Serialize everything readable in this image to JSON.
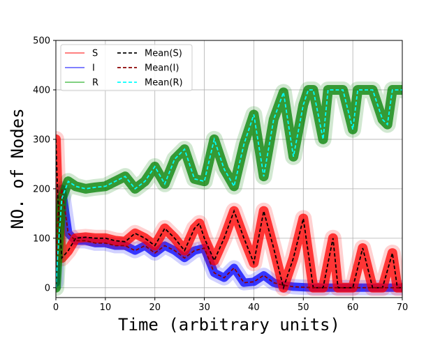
{
  "chart_data": {
    "type": "line",
    "title": "",
    "xlabel": "Time (arbitrary units)",
    "ylabel": "NO. of Nodes",
    "xlim": [
      0,
      70
    ],
    "ylim": [
      -20,
      500
    ],
    "xticks": [
      0,
      10,
      20,
      30,
      40,
      50,
      60,
      70
    ],
    "yticks": [
      0,
      100,
      200,
      300,
      400,
      500
    ],
    "grid": true,
    "legend_position": "top-left",
    "legend_columns": 2,
    "legend": [
      {
        "label": "S",
        "color": "#ff8080",
        "style": "solid"
      },
      {
        "label": "I",
        "color": "#8080ff",
        "style": "solid"
      },
      {
        "label": "R",
        "color": "#80d080",
        "style": "solid"
      },
      {
        "label": "Mean(S)",
        "color": "#000000",
        "style": "dashed"
      },
      {
        "label": "Mean(I)",
        "color": "#8b0000",
        "style": "dashed"
      },
      {
        "label": "Mean(R)",
        "color": "#00ffff",
        "style": "dashed"
      }
    ],
    "series": [
      {
        "name": "Mean(S)",
        "color": "#000000",
        "dash": true,
        "band_color": "#ff0000",
        "band_width": 14,
        "x": [
          0,
          0.4,
          1.2,
          2.5,
          4,
          6,
          8,
          10,
          12,
          14,
          16,
          18,
          20,
          22,
          24,
          26,
          28,
          29,
          30,
          32,
          34,
          36,
          38,
          40,
          42,
          44,
          46,
          48,
          50,
          52,
          54,
          56,
          57,
          58,
          60,
          62,
          64,
          66,
          68,
          69,
          70
        ],
        "values": [
          300,
          180,
          60,
          75,
          100,
          102,
          100,
          100,
          95,
          93,
          110,
          100,
          85,
          120,
          100,
          75,
          120,
          130,
          100,
          55,
          100,
          155,
          100,
          50,
          155,
          80,
          0,
          60,
          140,
          0,
          0,
          100,
          0,
          0,
          0,
          80,
          0,
          0,
          70,
          0,
          0
        ]
      },
      {
        "name": "Mean(I)",
        "color": "#8b0000",
        "dash": true,
        "band_color": "#0000ff",
        "band_width": 12,
        "x": [
          0,
          0.4,
          1.2,
          2.5,
          4,
          6,
          8,
          10,
          12,
          14,
          16,
          18,
          20,
          22,
          24,
          26,
          28,
          30,
          32,
          34,
          36,
          38,
          40,
          42,
          44,
          46,
          48,
          50,
          52,
          56,
          60,
          64,
          68,
          70
        ],
        "values": [
          10,
          150,
          200,
          110,
          95,
          95,
          90,
          90,
          85,
          85,
          75,
          85,
          70,
          85,
          75,
          60,
          75,
          80,
          30,
          20,
          40,
          10,
          12,
          25,
          10,
          5,
          2,
          1,
          0,
          0,
          0,
          0,
          0,
          0
        ]
      },
      {
        "name": "Mean(R)",
        "color": "#00ffff",
        "dash": true,
        "band_color": "#008000",
        "band_width": 14,
        "x": [
          0,
          0.4,
          1.2,
          2.5,
          4,
          6,
          8,
          10,
          12,
          14,
          16,
          18,
          20,
          22,
          24,
          26,
          28,
          30,
          32,
          34,
          36,
          38,
          40,
          42,
          44,
          46,
          48,
          50,
          51,
          52,
          54,
          55,
          56,
          58,
          60,
          61,
          62,
          64,
          66,
          67,
          68,
          69,
          70
        ],
        "values": [
          0,
          70,
          180,
          215,
          205,
          200,
          203,
          205,
          215,
          225,
          200,
          215,
          245,
          210,
          260,
          280,
          220,
          215,
          300,
          240,
          205,
          290,
          350,
          225,
          340,
          395,
          265,
          370,
          400,
          400,
          300,
          400,
          400,
          400,
          320,
          400,
          400,
          400,
          340,
          330,
          400,
          400,
          400
        ]
      }
    ]
  }
}
